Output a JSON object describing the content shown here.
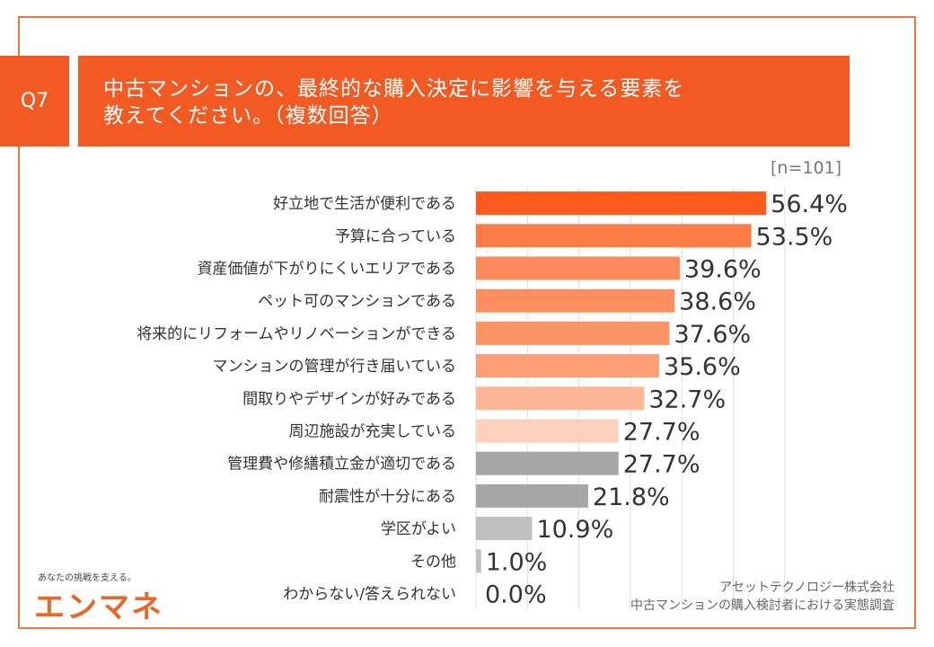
{
  "question_number": "Q7",
  "title_line1": "中古マンションの、最終的な購入決定に影響を与える要素を",
  "title_line2": "教えてください。（複数回答）",
  "sample_size": "[n=101]",
  "logo_tagline": "あなたの挑戦を支える。",
  "logo": "エンマネ",
  "source_line1": "アセットテクノロジー株式会社",
  "source_line2": "中古マンションの購入検討者における実態調査",
  "chart_data": {
    "type": "bar",
    "orientation": "horizontal",
    "categories": [
      "好立地で生活が便利である",
      "予算に合っている",
      "資産価値が下がりにくいエリアである",
      "ペット可のマンションである",
      "将来的にリフォームやリノベーションができる",
      "マンションの管理が行き届いている",
      "間取りやデザインが好みである",
      "周辺施設が充実している",
      "管理費や修繕積立金が適切である",
      "耐震性が十分にある",
      "学区がよい",
      "その他",
      "わからない/答えられない"
    ],
    "values": [
      56.4,
      53.5,
      39.6,
      38.6,
      37.6,
      35.6,
      32.7,
      27.7,
      27.7,
      21.8,
      10.9,
      1.0,
      0.0
    ],
    "value_labels": [
      "56.4%",
      "53.5%",
      "39.6%",
      "38.6%",
      "37.6%",
      "35.6%",
      "32.7%",
      "27.7%",
      "27.7%",
      "21.8%",
      "10.9%",
      "1.0%",
      "0.0%"
    ],
    "colors": [
      "#fd5a1e",
      "#fd7b46",
      "#fd8a5a",
      "#fd8e5f",
      "#fd9466",
      "#fd9f76",
      "#fdb797",
      "#fdd0bc",
      "#a6a6a6",
      "#a6a6a6",
      "#bfbfbf",
      "#bfbfbf",
      "#bfbfbf"
    ],
    "xlim": [
      0,
      60
    ],
    "grid": true,
    "unit": "%"
  }
}
